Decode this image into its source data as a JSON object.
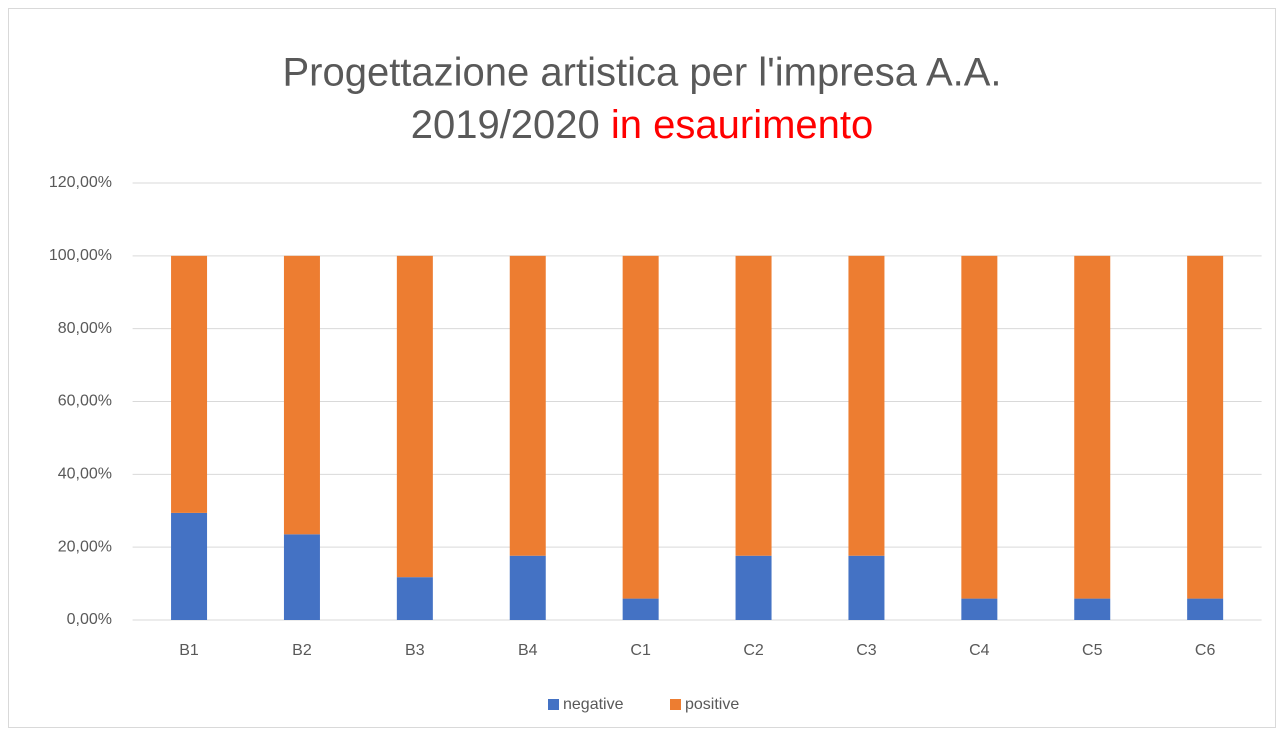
{
  "chart_data": {
    "type": "stacked_bar",
    "title": "Progettazione artistica per l'impresa A.A.",
    "title_line2": "2019/2020",
    "title_highlight": "in esaurimento",
    "title_highlight_color": "#ff0000",
    "categories": [
      "B1",
      "B2",
      "B3",
      "B4",
      "C1",
      "C2",
      "C3",
      "C4",
      "C5",
      "C6"
    ],
    "series": [
      {
        "name": "negative",
        "color": "#4472c4",
        "values": [
          29.41,
          23.53,
          11.76,
          17.65,
          5.88,
          17.65,
          17.65,
          5.88,
          5.88,
          5.88
        ]
      },
      {
        "name": "positive",
        "color": "#ed7d31",
        "values": [
          70.59,
          76.47,
          88.24,
          82.35,
          94.12,
          82.35,
          82.35,
          94.12,
          94.12,
          94.12
        ]
      }
    ],
    "ylim": [
      0,
      120
    ],
    "yticks": [
      {
        "value": 0,
        "label": "0,00%"
      },
      {
        "value": 20,
        "label": "20,00%"
      },
      {
        "value": 40,
        "label": "40,00%"
      },
      {
        "value": 60,
        "label": "60,00%"
      },
      {
        "value": 80,
        "label": "80,00%"
      },
      {
        "value": 100,
        "label": "100,00%"
      },
      {
        "value": 120,
        "label": "120,00%"
      }
    ],
    "grid": true,
    "legend": "bottom"
  }
}
